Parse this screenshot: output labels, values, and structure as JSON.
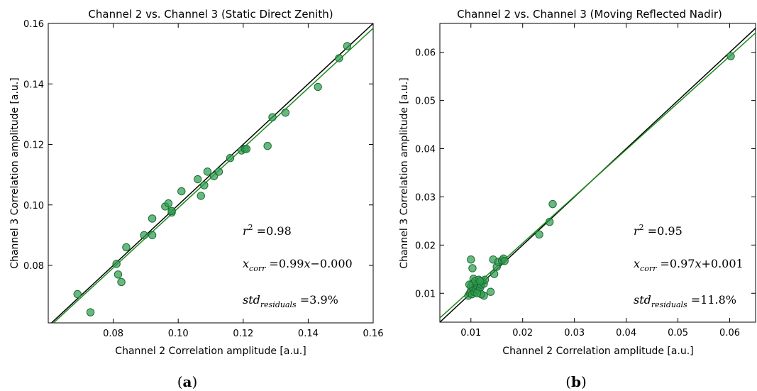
{
  "panel_labels": [
    {
      "open": "(",
      "letter": "a",
      "close": ")"
    },
    {
      "open": "(",
      "letter": "b",
      "close": ")"
    }
  ],
  "colors": {
    "points": "#2e9e4e",
    "point_edge": "#1d6b33",
    "fit_line": "#1a8a1a",
    "identity_line": "#000000"
  },
  "chart_data": [
    {
      "type": "scatter",
      "title": "Channel 2 vs. Channel 3 (Static Direct Zenith)",
      "xlabel": "Channel 2 Correlation amplitude [a.u.]",
      "ylabel": "Channel 3 Correlation amplitude [a.u.]",
      "xlim": [
        0.06,
        0.16
      ],
      "ylim": [
        0.061,
        0.16
      ],
      "xticks": [
        0.08,
        0.1,
        0.12,
        0.14,
        0.16
      ],
      "xtick_labels": [
        "0.08",
        "0.10",
        "0.12",
        "0.14",
        "0.16"
      ],
      "yticks": [
        0.08,
        0.1,
        0.12,
        0.14,
        0.16
      ],
      "ytick_labels": [
        "0.08",
        "0.10",
        "0.12",
        "0.14",
        "0.16"
      ],
      "grid": false,
      "points": [
        [
          0.069,
          0.0705
        ],
        [
          0.073,
          0.0645
        ],
        [
          0.081,
          0.0805
        ],
        [
          0.0815,
          0.077
        ],
        [
          0.0825,
          0.0745
        ],
        [
          0.084,
          0.086
        ],
        [
          0.0895,
          0.09
        ],
        [
          0.092,
          0.0955
        ],
        [
          0.092,
          0.09
        ],
        [
          0.096,
          0.0995
        ],
        [
          0.097,
          0.1005
        ],
        [
          0.098,
          0.0975
        ],
        [
          0.098,
          0.098
        ],
        [
          0.101,
          0.1045
        ],
        [
          0.106,
          0.1085
        ],
        [
          0.107,
          0.103
        ],
        [
          0.108,
          0.1065
        ],
        [
          0.109,
          0.111
        ],
        [
          0.111,
          0.1095
        ],
        [
          0.1125,
          0.111
        ],
        [
          0.116,
          0.1155
        ],
        [
          0.1195,
          0.118
        ],
        [
          0.1205,
          0.1185
        ],
        [
          0.121,
          0.1185
        ],
        [
          0.1275,
          0.1195
        ],
        [
          0.129,
          0.129
        ],
        [
          0.133,
          0.1305
        ],
        [
          0.143,
          0.139
        ],
        [
          0.1495,
          0.1485
        ],
        [
          0.152,
          0.1525
        ]
      ],
      "fit": {
        "slope": 0.99,
        "intercept": 0.0
      },
      "identity": {
        "slope": 1.0,
        "intercept": 0.0
      },
      "annotations": {
        "r2_value": "0.98",
        "fit_slope": "0.99",
        "fit_rest": "−0.000",
        "std_value": "3.9%"
      }
    },
    {
      "type": "scatter",
      "title": "Channel 2 vs. Channel 3 (Moving Reflected Nadir)",
      "xlabel": "Channel 2 Correlation amplitude [a.u.]",
      "ylabel": "Channel 3 Correlation amplitude [a.u.]",
      "xlim": [
        0.004,
        0.065
      ],
      "ylim": [
        0.004,
        0.066
      ],
      "xticks": [
        0.01,
        0.02,
        0.03,
        0.04,
        0.05,
        0.06
      ],
      "xtick_labels": [
        "0.01",
        "0.02",
        "0.03",
        "0.04",
        "0.05",
        "0.06"
      ],
      "yticks": [
        0.01,
        0.02,
        0.03,
        0.04,
        0.05,
        0.06
      ],
      "ytick_labels": [
        "0.01",
        "0.02",
        "0.03",
        "0.04",
        "0.05",
        "0.06"
      ],
      "grid": false,
      "points": [
        [
          0.0095,
          0.0095
        ],
        [
          0.0098,
          0.01
        ],
        [
          0.01,
          0.0105
        ],
        [
          0.0102,
          0.0098
        ],
        [
          0.01,
          0.0115
        ],
        [
          0.0103,
          0.012
        ],
        [
          0.0105,
          0.011
        ],
        [
          0.0107,
          0.0102
        ],
        [
          0.011,
          0.0108
        ],
        [
          0.0112,
          0.0115
        ],
        [
          0.0113,
          0.012
        ],
        [
          0.0115,
          0.0105
        ],
        [
          0.0118,
          0.0112
        ],
        [
          0.012,
          0.0118
        ],
        [
          0.0122,
          0.0125
        ],
        [
          0.0125,
          0.0095
        ],
        [
          0.0125,
          0.012
        ],
        [
          0.0127,
          0.0128
        ],
        [
          0.01,
          0.017
        ],
        [
          0.0103,
          0.0152
        ],
        [
          0.0105,
          0.013
        ],
        [
          0.0108,
          0.0125
        ],
        [
          0.0115,
          0.0128
        ],
        [
          0.012,
          0.0098
        ],
        [
          0.0097,
          0.0118
        ],
        [
          0.0112,
          0.01
        ],
        [
          0.0118,
          0.0125
        ],
        [
          0.0138,
          0.0103
        ],
        [
          0.0143,
          0.017
        ],
        [
          0.0145,
          0.014
        ],
        [
          0.015,
          0.0155
        ],
        [
          0.0153,
          0.0165
        ],
        [
          0.016,
          0.0168
        ],
        [
          0.0163,
          0.0172
        ],
        [
          0.0165,
          0.0167
        ],
        [
          0.0232,
          0.0222
        ],
        [
          0.0252,
          0.0248
        ],
        [
          0.0258,
          0.0285
        ],
        [
          0.0602,
          0.0592
        ]
      ],
      "fit": {
        "slope": 0.97,
        "intercept": 0.001
      },
      "identity": {
        "slope": 1.0,
        "intercept": 0.0
      },
      "annotations": {
        "r2_value": "0.95",
        "fit_slope": "0.97",
        "fit_rest": "+0.001",
        "std_value": "11.8%"
      }
    }
  ]
}
